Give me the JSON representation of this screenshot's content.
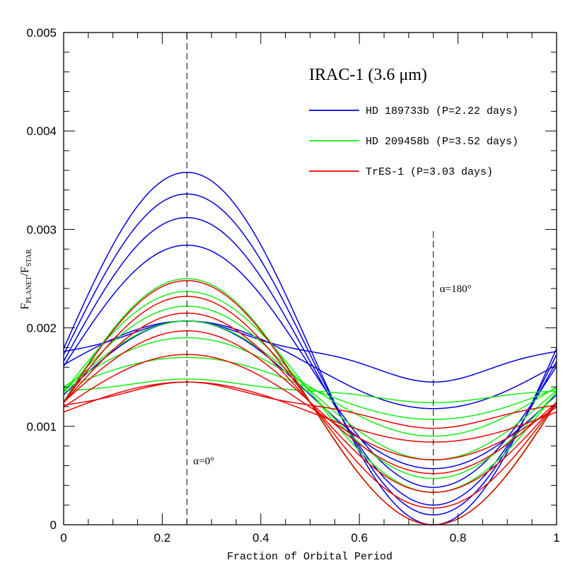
{
  "chart_data": {
    "type": "line",
    "title": "IRAC-1 (3.6 μm)",
    "xlabel": "Fraction of Orbital Period",
    "ylabel": {
      "main_1": "F",
      "sub_1": "PLANET",
      "slash": "/F",
      "sub_2": "STAR"
    },
    "xlim": [
      0,
      1
    ],
    "ylim": [
      0,
      0.005
    ],
    "x_ticks": [
      0,
      0.2,
      0.4,
      0.6,
      0.8,
      1
    ],
    "x_tick_labels": [
      "0",
      "0.2",
      "0.4",
      "0.6",
      "0.8",
      "1"
    ],
    "y_ticks": [
      0,
      0.001,
      0.002,
      0.003,
      0.004,
      0.005
    ],
    "y_tick_labels": [
      "0",
      "0.001",
      "0.002",
      "0.003",
      "0.004",
      "0.005"
    ],
    "grid": false,
    "legend_position": "top-right",
    "annotations": [
      {
        "text": "α=0°",
        "x": 0.25,
        "y": 0.00065
      },
      {
        "text": "α=180°",
        "x": 0.75,
        "y": 0.0024
      }
    ],
    "reference_lines": [
      {
        "x": 0.25,
        "y_from": 0,
        "y_to": 0.005
      },
      {
        "x": 0.75,
        "y_from": 0,
        "y_to": 0.003
      }
    ],
    "families": [
      {
        "name": "HD 189733b (P=2.22 days)",
        "color": "#0000dd",
        "curves": [
          {
            "max": 0.00358,
            "min": 0.0
          },
          {
            "max": 0.00336,
            "min": 0.0001
          },
          {
            "max": 0.00312,
            "min": 0.0002
          },
          {
            "max": 0.00284,
            "min": 0.00038
          },
          {
            "max": 0.00207,
            "min": 0.00057
          },
          {
            "max": 0.00207,
            "min": 0.00118
          },
          {
            "max": 0.00207,
            "min": 0.00145,
            "shape": 0.45
          }
        ]
      },
      {
        "name": "HD 209458b (P=3.52 days)",
        "color": "#11ee11",
        "curves": [
          {
            "max": 0.0025,
            "min": 0.0
          },
          {
            "max": 0.00237,
            "min": 0.00033
          },
          {
            "max": 0.00222,
            "min": 0.00047
          },
          {
            "max": 0.00207,
            "min": 0.00066
          },
          {
            "max": 0.0019,
            "min": 0.0009
          },
          {
            "max": 0.0017,
            "min": 0.00107
          },
          {
            "max": 0.00148,
            "min": 0.00124,
            "shape": 0.4
          }
        ]
      },
      {
        "name": "TrES-1 (P=3.03 days)",
        "color": "#ee0000",
        "curves": [
          {
            "max": 0.00248,
            "min": 0.0
          },
          {
            "max": 0.00232,
            "min": 0.00017
          },
          {
            "max": 0.00215,
            "min": 0.00033
          },
          {
            "max": 0.00197,
            "min": 0.00052
          },
          {
            "max": 0.00173,
            "min": 0.00066
          },
          {
            "max": 0.00145,
            "min": 0.00084
          },
          {
            "max": 0.00145,
            "min": 0.00098,
            "shape": 0.5
          }
        ]
      }
    ]
  }
}
